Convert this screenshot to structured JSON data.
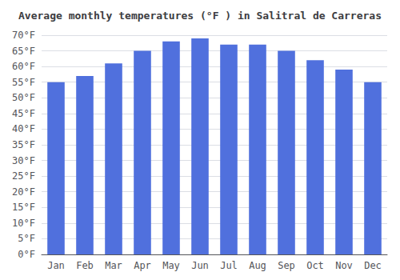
{
  "chart_data": {
    "type": "bar",
    "title": "Average monthly temperatures (°F ) in Salitral de Carreras",
    "categories": [
      "Jan",
      "Feb",
      "Mar",
      "Apr",
      "May",
      "Jun",
      "Jul",
      "Aug",
      "Sep",
      "Oct",
      "Nov",
      "Dec"
    ],
    "values": [
      55,
      57,
      61,
      65,
      68,
      69,
      67,
      67,
      65,
      62,
      59,
      55
    ],
    "ylim": [
      0,
      70
    ],
    "yticks": [
      {
        "value": 0,
        "label": "0°F"
      },
      {
        "value": 5,
        "label": "5°F"
      },
      {
        "value": 10,
        "label": "10°F"
      },
      {
        "value": 15,
        "label": "15°F"
      },
      {
        "value": 20,
        "label": "20°F"
      },
      {
        "value": 25,
        "label": "25°F"
      },
      {
        "value": 30,
        "label": "30°F"
      },
      {
        "value": 35,
        "label": "35°F"
      },
      {
        "value": 40,
        "label": "40°F"
      },
      {
        "value": 45,
        "label": "45°F"
      },
      {
        "value": 50,
        "label": "50°F"
      },
      {
        "value": 55,
        "label": "55°F"
      },
      {
        "value": 60,
        "label": "60°F"
      },
      {
        "value": 65,
        "label": "65°F"
      },
      {
        "value": 70,
        "label": "70°F"
      }
    ],
    "grid": true
  }
}
